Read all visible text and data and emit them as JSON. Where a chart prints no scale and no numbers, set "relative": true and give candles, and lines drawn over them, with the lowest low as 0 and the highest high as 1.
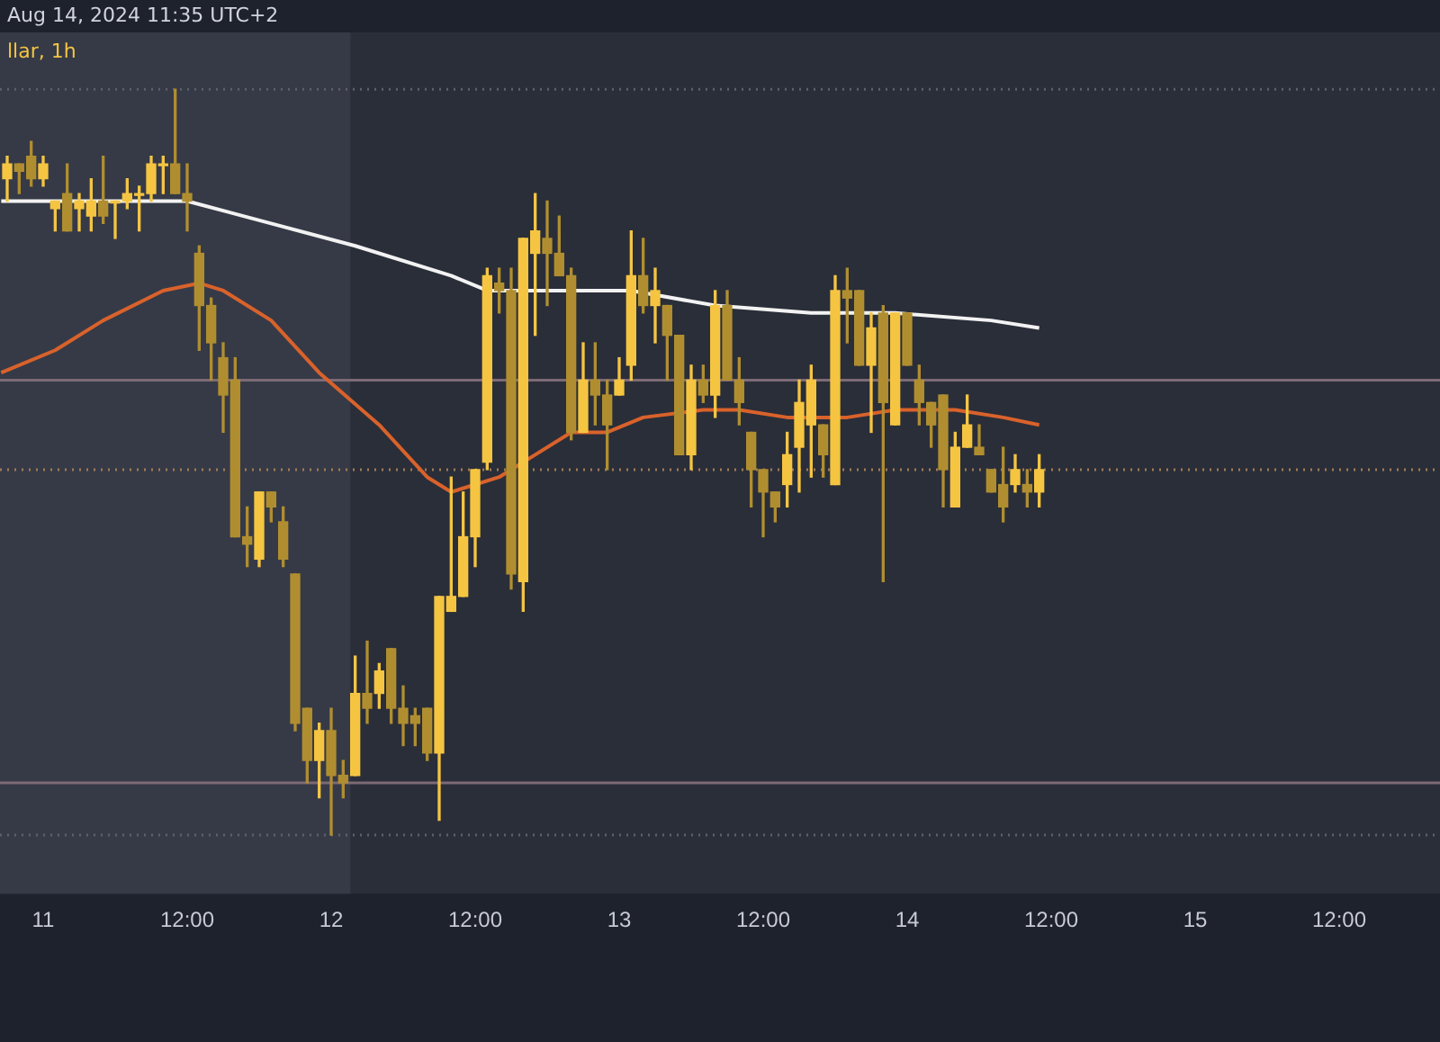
{
  "chart_data": {
    "type": "candlestick",
    "title": "Aug 14, 2024 11:35 UTC+2",
    "subtitle": "llar, 1h",
    "relative": true,
    "colors": [
      "#f5c542",
      "#b08e30",
      "#b08e30",
      "#f5c542",
      "#f5c542",
      "#b08e30",
      "#f5c542",
      "#f5c542",
      "#b08e30",
      "#f5c542",
      "#f5c542",
      "#f5c542",
      "#f5c542",
      "#f5c542",
      "#b08e30",
      "#b08e30",
      "#b08e30",
      "#b08e30",
      "#b08e30",
      "#b08e30",
      "#b08e30",
      "#f5c542",
      "#b08e30",
      "#b08e30",
      "#b08e30",
      "#b08e30",
      "#f5c542",
      "#b08e30",
      "#b08e30",
      "#f5c542",
      "#b08e30",
      "#f5c542",
      "#b08e30",
      "#b08e30",
      "#b08e30",
      "#b08e30",
      "#f5c542",
      "#f5c542",
      "#f5c542",
      "#f5c542",
      "#f5c542",
      "#b08e30",
      "#b08e30",
      "#f5c542",
      "#f5c542",
      "#b08e30",
      "#b08e30",
      "#b08e30",
      "#f5c542",
      "#b08e30",
      "#b08e30",
      "#f5c542",
      "#f5c542",
      "#b08e30",
      "#f5c542",
      "#b08e30",
      "#b08e30",
      "#f5c542",
      "#b08e30",
      "#f5c542",
      "#b08e30",
      "#b08e30",
      "#b08e30",
      "#b08e30",
      "#b08e30",
      "#f5c542",
      "#f5c542",
      "#f5c542",
      "#b08e30",
      "#f5c542",
      "#b08e30",
      "#b08e30",
      "#f5c542",
      "#b08e30",
      "#f5c542",
      "#b08e30",
      "#b08e30",
      "#b08e30",
      "#b08e30",
      "#f5c542",
      "#f5c542",
      "#b08e30",
      "#b08e30",
      "#b08e30",
      "#f5c542",
      "#b08e30",
      "#f5c542"
    ],
    "x": [
      "2024-08-10T21:00",
      "2024-08-10T22:00",
      "2024-08-10T23:00",
      "2024-08-11T00:00",
      "2024-08-11T01:00",
      "2024-08-11T02:00",
      "2024-08-11T03:00",
      "2024-08-11T04:00",
      "2024-08-11T05:00",
      "2024-08-11T06:00",
      "2024-08-11T07:00",
      "2024-08-11T08:00",
      "2024-08-11T09:00",
      "2024-08-11T10:00",
      "2024-08-11T11:00",
      "2024-08-11T12:00",
      "2024-08-11T13:00",
      "2024-08-11T14:00",
      "2024-08-11T15:00",
      "2024-08-11T16:00",
      "2024-08-11T17:00",
      "2024-08-11T18:00",
      "2024-08-11T19:00",
      "2024-08-11T20:00",
      "2024-08-11T21:00",
      "2024-08-11T22:00",
      "2024-08-11T23:00",
      "2024-08-12T00:00",
      "2024-08-12T01:00",
      "2024-08-12T02:00",
      "2024-08-12T03:00",
      "2024-08-12T04:00",
      "2024-08-12T05:00",
      "2024-08-12T06:00",
      "2024-08-12T07:00",
      "2024-08-12T08:00",
      "2024-08-12T09:00",
      "2024-08-12T10:00",
      "2024-08-12T11:00",
      "2024-08-12T12:00",
      "2024-08-12T13:00",
      "2024-08-12T14:00",
      "2024-08-12T15:00",
      "2024-08-12T16:00",
      "2024-08-12T17:00",
      "2024-08-12T18:00",
      "2024-08-12T19:00",
      "2024-08-12T20:00",
      "2024-08-12T21:00",
      "2024-08-12T22:00",
      "2024-08-12T23:00",
      "2024-08-13T00:00",
      "2024-08-13T01:00",
      "2024-08-13T02:00",
      "2024-08-13T03:00",
      "2024-08-13T04:00",
      "2024-08-13T05:00",
      "2024-08-13T06:00",
      "2024-08-13T07:00",
      "2024-08-13T08:00",
      "2024-08-13T09:00",
      "2024-08-13T10:00",
      "2024-08-13T11:00",
      "2024-08-13T12:00",
      "2024-08-13T13:00",
      "2024-08-13T14:00",
      "2024-08-13T15:00",
      "2024-08-13T16:00",
      "2024-08-13T17:00",
      "2024-08-13T18:00",
      "2024-08-13T19:00",
      "2024-08-13T20:00",
      "2024-08-13T21:00",
      "2024-08-13T22:00",
      "2024-08-13T23:00",
      "2024-08-14T00:00",
      "2024-08-14T01:00",
      "2024-08-14T02:00",
      "2024-08-14T03:00",
      "2024-08-14T04:00",
      "2024-08-14T05:00",
      "2024-08-14T06:00",
      "2024-08-14T07:00",
      "2024-08-14T08:00",
      "2024-08-14T09:00",
      "2024-08-14T10:00",
      "2024-08-14T11:00"
    ],
    "ohlc": [
      [
        0.88,
        0.91,
        0.85,
        0.9
      ],
      [
        0.9,
        0.9,
        0.86,
        0.89
      ],
      [
        0.91,
        0.93,
        0.87,
        0.88
      ],
      [
        0.88,
        0.91,
        0.87,
        0.9
      ],
      [
        0.84,
        0.85,
        0.81,
        0.85
      ],
      [
        0.86,
        0.9,
        0.81,
        0.81
      ],
      [
        0.84,
        0.86,
        0.81,
        0.85
      ],
      [
        0.83,
        0.88,
        0.81,
        0.85
      ],
      [
        0.85,
        0.91,
        0.82,
        0.83
      ],
      [
        0.85,
        0.85,
        0.8,
        0.85
      ],
      [
        0.85,
        0.88,
        0.84,
        0.86
      ],
      [
        0.86,
        0.87,
        0.81,
        0.86
      ],
      [
        0.86,
        0.91,
        0.85,
        0.9
      ],
      [
        0.9,
        0.91,
        0.86,
        0.9
      ],
      [
        0.9,
        1,
        0.86,
        0.86
      ],
      [
        0.86,
        0.9,
        0.81,
        0.85
      ],
      [
        0.78,
        0.79,
        0.65,
        0.71
      ],
      [
        0.71,
        0.72,
        0.61,
        0.66
      ],
      [
        0.64,
        0.66,
        0.54,
        0.59
      ],
      [
        0.61,
        0.64,
        0.4,
        0.4
      ],
      [
        0.4,
        0.44,
        0.36,
        0.39
      ],
      [
        0.37,
        0.46,
        0.36,
        0.46
      ],
      [
        0.46,
        0.46,
        0.42,
        0.44
      ],
      [
        0.42,
        0.44,
        0.36,
        0.37
      ],
      [
        0.35,
        0.35,
        0.14,
        0.15
      ],
      [
        0.17,
        0.17,
        0.07,
        0.1
      ],
      [
        0.1,
        0.15,
        0.05,
        0.14
      ],
      [
        0.14,
        0.17,
        0,
        0.08
      ],
      [
        0.08,
        0.1,
        0.05,
        0.07
      ],
      [
        0.08,
        0.24,
        0.08,
        0.19
      ],
      [
        0.19,
        0.26,
        0.15,
        0.17
      ],
      [
        0.19,
        0.23,
        0.17,
        0.22
      ],
      [
        0.25,
        0.25,
        0.15,
        0.17
      ],
      [
        0.17,
        0.2,
        0.12,
        0.15
      ],
      [
        0.16,
        0.17,
        0.12,
        0.15
      ],
      [
        0.17,
        0.17,
        0.1,
        0.11
      ],
      [
        0.11,
        0.32,
        0.02,
        0.32
      ],
      [
        0.3,
        0.48,
        0.3,
        0.32
      ],
      [
        0.32,
        0.46,
        0.32,
        0.4
      ],
      [
        0.4,
        0.49,
        0.36,
        0.49
      ],
      [
        0.5,
        0.76,
        0.49,
        0.75
      ],
      [
        0.74,
        0.76,
        0.7,
        0.73
      ],
      [
        0.73,
        0.76,
        0.33,
        0.35
      ],
      [
        0.34,
        0.8,
        0.3,
        0.8
      ],
      [
        0.78,
        0.86,
        0.67,
        0.81
      ],
      [
        0.8,
        0.85,
        0.71,
        0.78
      ],
      [
        0.78,
        0.83,
        0.75,
        0.75
      ],
      [
        0.75,
        0.76,
        0.53,
        0.54
      ],
      [
        0.54,
        0.66,
        0.54,
        0.61
      ],
      [
        0.61,
        0.66,
        0.55,
        0.59
      ],
      [
        0.59,
        0.61,
        0.49,
        0.55
      ],
      [
        0.59,
        0.64,
        0.59,
        0.61
      ],
      [
        0.63,
        0.81,
        0.61,
        0.75
      ],
      [
        0.75,
        0.8,
        0.7,
        0.71
      ],
      [
        0.71,
        0.76,
        0.66,
        0.73
      ],
      [
        0.71,
        0.71,
        0.61,
        0.67
      ],
      [
        0.67,
        0.67,
        0.51,
        0.51
      ],
      [
        0.51,
        0.63,
        0.49,
        0.61
      ],
      [
        0.61,
        0.63,
        0.58,
        0.59
      ],
      [
        0.59,
        0.73,
        0.56,
        0.71
      ],
      [
        0.71,
        0.73,
        0.61,
        0.61
      ],
      [
        0.61,
        0.64,
        0.55,
        0.58
      ],
      [
        0.54,
        0.54,
        0.44,
        0.49
      ],
      [
        0.49,
        0.49,
        0.4,
        0.46
      ],
      [
        0.46,
        0.46,
        0.42,
        0.44
      ],
      [
        0.47,
        0.54,
        0.44,
        0.51
      ],
      [
        0.52,
        0.61,
        0.46,
        0.58
      ],
      [
        0.55,
        0.63,
        0.48,
        0.61
      ],
      [
        0.55,
        0.55,
        0.48,
        0.51
      ],
      [
        0.47,
        0.75,
        0.47,
        0.73
      ],
      [
        0.73,
        0.76,
        0.66,
        0.72
      ],
      [
        0.73,
        0.73,
        0.63,
        0.63
      ],
      [
        0.63,
        0.7,
        0.54,
        0.68
      ],
      [
        0.7,
        0.71,
        0.34,
        0.58
      ],
      [
        0.55,
        0.7,
        0.55,
        0.7
      ],
      [
        0.7,
        0.7,
        0.63,
        0.63
      ],
      [
        0.61,
        0.63,
        0.55,
        0.58
      ],
      [
        0.58,
        0.58,
        0.52,
        0.55
      ],
      [
        0.59,
        0.59,
        0.44,
        0.49
      ],
      [
        0.44,
        0.54,
        0.44,
        0.52
      ],
      [
        0.52,
        0.59,
        0.52,
        0.55
      ],
      [
        0.52,
        0.55,
        0.51,
        0.51
      ],
      [
        0.49,
        0.49,
        0.46,
        0.46
      ],
      [
        0.47,
        0.52,
        0.42,
        0.44
      ],
      [
        0.47,
        0.51,
        0.46,
        0.49
      ],
      [
        0.47,
        0.49,
        0.44,
        0.46
      ],
      [
        0.46,
        0.51,
        0.44,
        0.49
      ]
    ],
    "series": [
      {
        "type": "line",
        "color": "#f2f2f2",
        "x": [
          "2024-08-10T20:30",
          "2024-08-11T12:00",
          "2024-08-11T19:00",
          "2024-08-12T02:00",
          "2024-08-12T10:00",
          "2024-08-12T13:00",
          "2024-08-12T17:00",
          "2024-08-13T01:00",
          "2024-08-13T08:00",
          "2024-08-13T16:00",
          "2024-08-13T23:00",
          "2024-08-14T07:00",
          "2024-08-14T11:00"
        ],
        "values": [
          0.85,
          0.85,
          0.82,
          0.79,
          0.75,
          0.73,
          0.73,
          0.73,
          0.71,
          0.7,
          0.7,
          0.69,
          0.68
        ]
      },
      {
        "type": "line",
        "color": "#d9622b",
        "x": [
          "2024-08-10T20:30",
          "2024-08-11T01:00",
          "2024-08-11T05:00",
          "2024-08-11T10:00",
          "2024-08-11T13:00",
          "2024-08-11T15:00",
          "2024-08-11T19:00",
          "2024-08-11T23:00",
          "2024-08-12T04:00",
          "2024-08-12T08:00",
          "2024-08-12T10:00",
          "2024-08-12T12:00",
          "2024-08-12T14:00",
          "2024-08-12T17:00",
          "2024-08-12T20:00",
          "2024-08-12T23:00",
          "2024-08-13T02:00",
          "2024-08-13T07:00",
          "2024-08-13T10:00",
          "2024-08-13T14:00",
          "2024-08-13T19:00",
          "2024-08-13T23:00",
          "2024-08-14T04:00",
          "2024-08-14T08:00",
          "2024-08-14T11:00"
        ],
        "values": [
          0.62,
          0.65,
          0.69,
          0.73,
          0.74,
          0.73,
          0.69,
          0.62,
          0.55,
          0.48,
          0.46,
          0.47,
          0.48,
          0.51,
          0.54,
          0.54,
          0.56,
          0.57,
          0.57,
          0.56,
          0.56,
          0.57,
          0.57,
          0.56,
          0.55
        ]
      }
    ],
    "xlim": [
      "2024-08-10T20:24",
      "2024-08-15T20:24"
    ],
    "xticks": [
      {
        "value": "2024-08-11T00:00",
        "label": "11"
      },
      {
        "value": "2024-08-11T12:00",
        "label": "12:00"
      },
      {
        "value": "2024-08-12T00:00",
        "label": "12"
      },
      {
        "value": "2024-08-12T12:00",
        "label": "12:00"
      },
      {
        "value": "2024-08-13T00:00",
        "label": "13"
      },
      {
        "value": "2024-08-13T12:00",
        "label": "12:00"
      },
      {
        "value": "2024-08-14T00:00",
        "label": "14"
      },
      {
        "value": "2024-08-14T12:00",
        "label": "12:00"
      },
      {
        "value": "2024-08-15T00:00",
        "label": "15"
      },
      {
        "value": "2024-08-15T12:00",
        "label": "12:00"
      }
    ],
    "ref_lines": [
      {
        "axis": "y",
        "value": 1,
        "color": "#5d606b",
        "line_style": "dotted"
      },
      {
        "axis": "y",
        "value": 0.49,
        "color": "#a07a55",
        "line_style": "dotted"
      },
      {
        "axis": "y",
        "value": 0.61,
        "color": "#7d6a75"
      },
      {
        "axis": "y",
        "value": 0.07,
        "color": "#7d6a75"
      },
      {
        "axis": "y",
        "value": 0,
        "color": "#5d606b",
        "line_style": "dotted"
      }
    ],
    "bands": [
      {
        "axis": "x",
        "from": "2024-08-10T20:24",
        "to": "2024-08-12T01:36",
        "color": "#363a47"
      }
    ],
    "marker": "none"
  }
}
